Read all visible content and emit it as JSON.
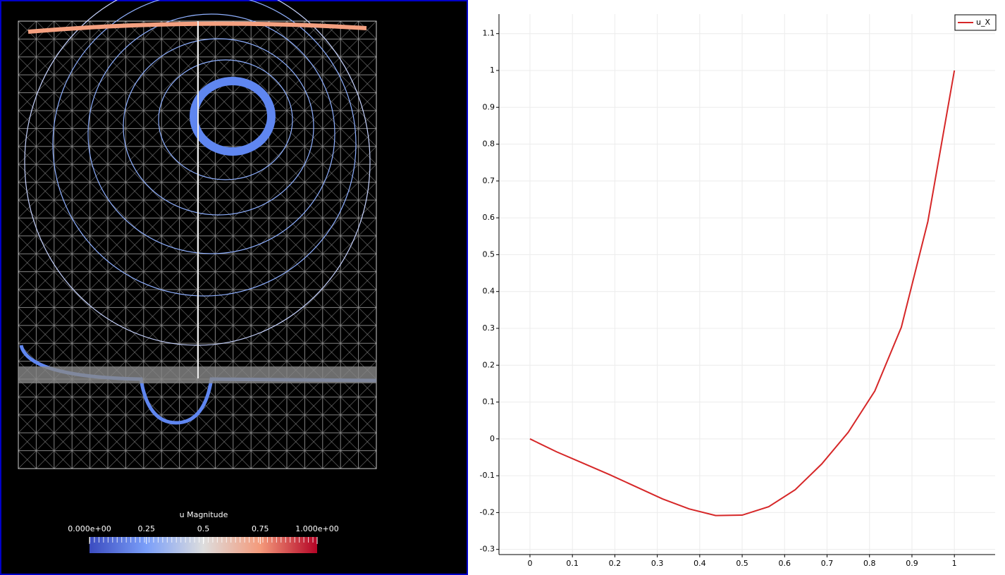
{
  "render_view": {
    "colorbar": {
      "title": "u Magnitude",
      "lim": [
        0,
        1
      ],
      "ticks": [
        {
          "value": 0,
          "label": "0.000e+00"
        },
        0.25,
        0.5,
        0.75,
        {
          "value": 1,
          "label": "1.000e+00"
        }
      ]
    }
  },
  "chart_data": {
    "type": "line",
    "x": [
      0,
      0.0625,
      0.125,
      0.1875,
      0.25,
      0.3125,
      0.375,
      0.4375,
      0.5,
      0.5625,
      0.625,
      0.6875,
      0.75,
      0.8125,
      0.875,
      0.9375,
      1
    ],
    "series": [
      {
        "name": "u_X",
        "color": "#d62728",
        "values": [
          0,
          -0.035,
          -0.066,
          -0.097,
          -0.13,
          -0.163,
          -0.19,
          -0.208,
          -0.207,
          -0.184,
          -0.138,
          -0.068,
          0.018,
          0.13,
          0.303,
          0.59,
          1.0
        ]
      }
    ],
    "xlim": [
      -0.073,
      1.096
    ],
    "ylim": [
      -0.314,
      1.153
    ],
    "xticks": [
      0,
      0.1,
      0.2,
      0.3,
      0.4,
      0.5,
      0.6,
      0.7,
      0.8,
      0.9,
      1
    ],
    "yticks": [
      -0.3,
      -0.2,
      -0.1,
      0,
      0.1,
      0.2,
      0.3,
      0.4,
      0.5,
      0.6,
      0.7,
      0.8,
      0.9,
      1,
      1.1
    ],
    "grid": true,
    "legend": "top-right"
  }
}
